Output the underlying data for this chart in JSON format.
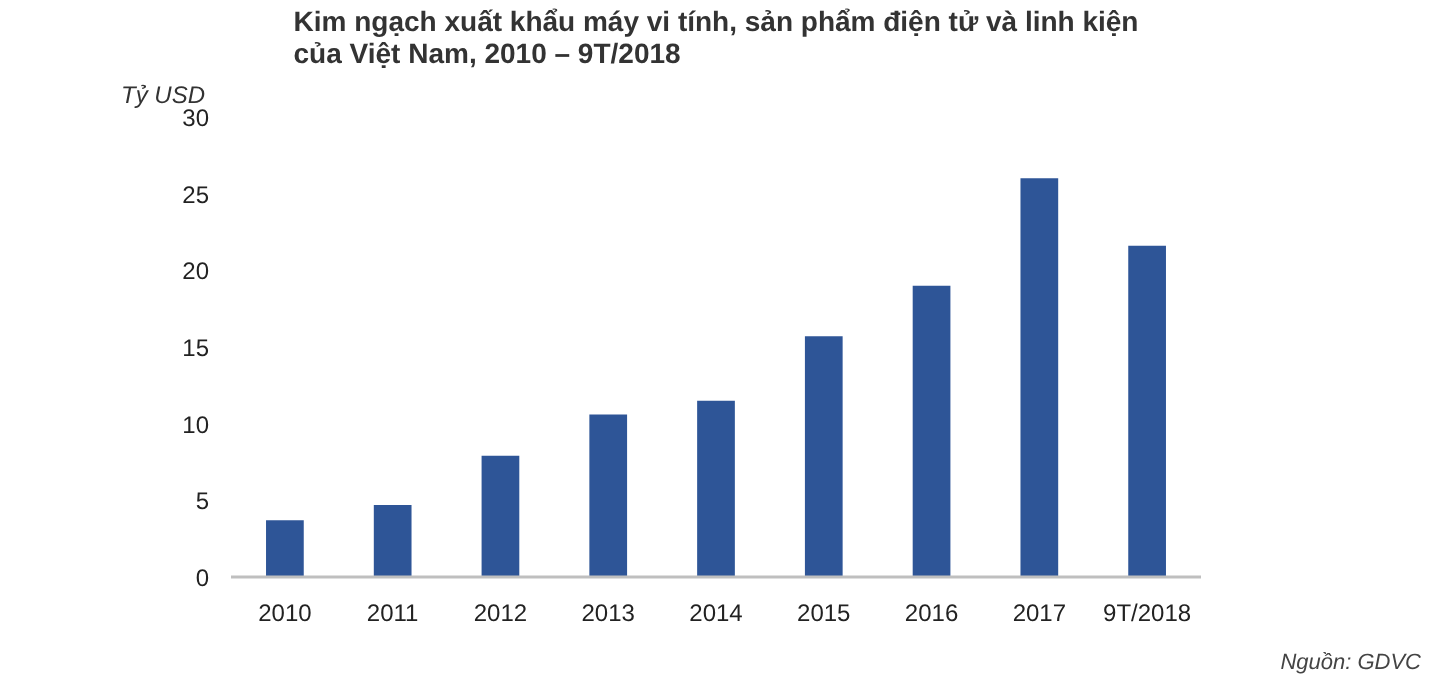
{
  "chart_data": {
    "type": "bar",
    "title": "Kim ngạch xuất khẩu máy vi tính, sản phẩm điện tử và linh kiện\ncủa Việt Nam, 2010 – 9T/2018",
    "ylabel": "Tỷ USD",
    "annotations": [
      "Nguồn: GDVC"
    ],
    "categories": [
      "2010",
      "2011",
      "2012",
      "2013",
      "2014",
      "2015",
      "2016",
      "2017",
      "9T/2018"
    ],
    "values": [
      3.7,
      4.7,
      7.9,
      10.6,
      11.5,
      15.7,
      19.0,
      26.0,
      21.6
    ],
    "color": "#2e5597",
    "ylim": [
      0,
      30
    ],
    "yticks": [
      0,
      5,
      10,
      15,
      20,
      25,
      30
    ],
    "grid": false
  }
}
